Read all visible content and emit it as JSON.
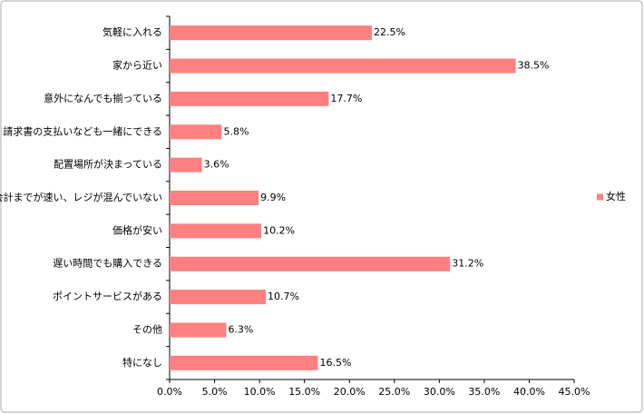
{
  "chart_data": {
    "type": "barh",
    "categories": [
      "気軽に入れる",
      "家から近い",
      "意外になんでも揃っている",
      "請求書の支払いなども一緒にできる",
      "配置場所が決まっている",
      "お会計までが速い、レジが混んでいない",
      "価格が安い",
      "遅い時間でも購入できる",
      "ポイントサービスがある",
      "その他",
      "特になし"
    ],
    "series": [
      {
        "name": "女性",
        "color": "#ff8080",
        "values": [
          22.5,
          38.5,
          17.7,
          5.8,
          3.6,
          9.9,
          10.2,
          31.2,
          10.7,
          6.3,
          16.5
        ],
        "value_labels": [
          "22.5%",
          "38.5%",
          "17.7%",
          "5.8%",
          "3.6%",
          "9.9%",
          "10.2%",
          "31.2%",
          "10.7%",
          "6.3%",
          "16.5%"
        ]
      }
    ],
    "xlim": [
      0,
      45
    ],
    "xticks": [
      {
        "value": 0,
        "label": "0.0%"
      },
      {
        "value": 5,
        "label": "5.0%"
      },
      {
        "value": 10,
        "label": "10.0%"
      },
      {
        "value": 15,
        "label": "15.0%"
      },
      {
        "value": 20,
        "label": "20.0%"
      },
      {
        "value": 25,
        "label": "25.0%"
      },
      {
        "value": 30,
        "label": "30.0%"
      },
      {
        "value": 35,
        "label": "35.0%"
      },
      {
        "value": 40,
        "label": "40.0%"
      },
      {
        "value": 45,
        "label": "45.0%"
      }
    ],
    "grid": false,
    "legend": "right"
  }
}
